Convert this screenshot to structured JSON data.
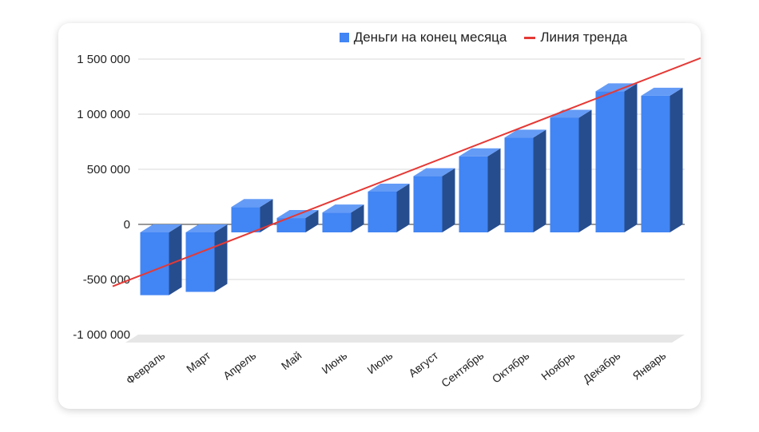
{
  "chart_data": {
    "type": "bar",
    "title": "",
    "xlabel": "",
    "ylabel": "",
    "categories": [
      "Февраль",
      "Март",
      "Апрель",
      "Май",
      "Июнь",
      "Июль",
      "Август",
      "Сентябрь",
      "Октябрь",
      "Ноябрь",
      "Декабрь",
      "Январь"
    ],
    "series": [
      {
        "name": "Деньги на конец месяца",
        "color": "#4285f4",
        "values": [
          -570000,
          -540000,
          230000,
          130000,
          180000,
          370000,
          510000,
          690000,
          860000,
          1040000,
          1280000,
          1240000
        ]
      }
    ],
    "trendline": {
      "name": "Линия тренда",
      "color": "#e53935",
      "start": -540000,
      "end": 1510000
    },
    "ylim": [
      -1000000,
      1500000
    ],
    "yticks": [
      -1000000,
      -500000,
      0,
      500000,
      1000000,
      1500000
    ],
    "ytick_labels": [
      "-1 000 000",
      "-500 000",
      "0",
      "500 000",
      "1 000 000",
      "1 500 000"
    ],
    "legend_position": "top",
    "grid": true,
    "style": "3d-bar"
  }
}
